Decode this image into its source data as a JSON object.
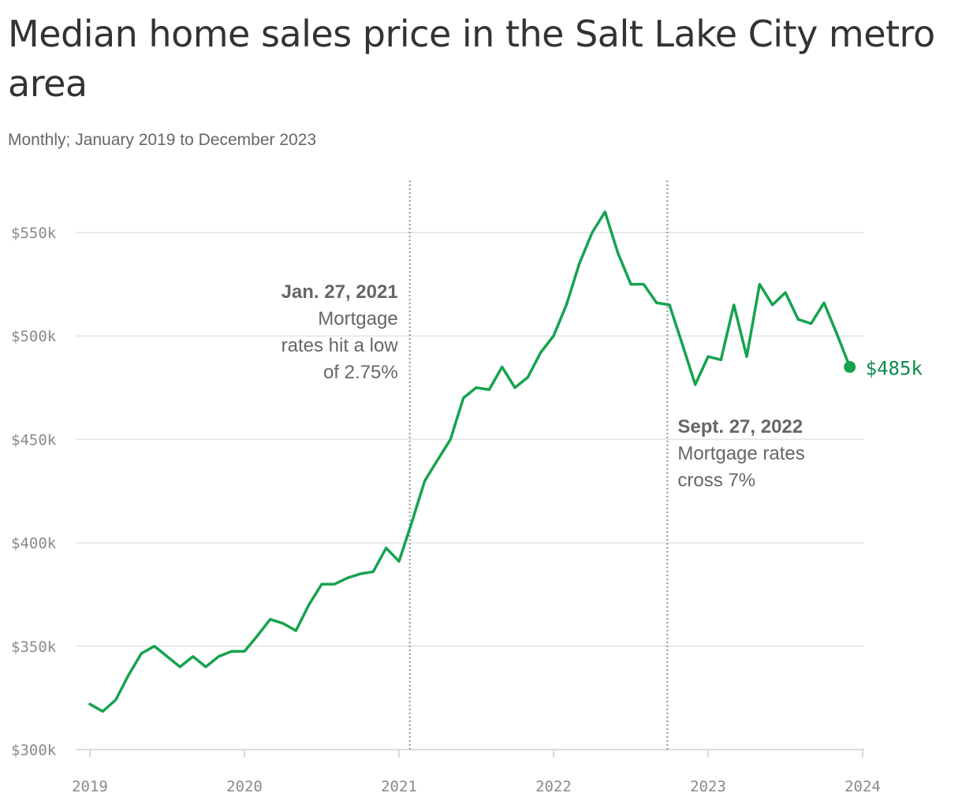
{
  "title": "Median home sales price in the Salt Lake City metro area",
  "subtitle": "Monthly; January 2019 to December 2023",
  "chart_data": {
    "type": "line",
    "title": "Median home sales price in the Salt Lake City metro area",
    "subtitle": "Monthly; January 2019 to December 2023",
    "xlabel": "",
    "ylabel": "",
    "x_range": [
      "2019-01",
      "2024-01"
    ],
    "ylim": [
      300000,
      560000
    ],
    "y_ticks": [
      300000,
      350000,
      400000,
      450000,
      500000,
      550000
    ],
    "y_tick_labels": [
      "$300k",
      "$350k",
      "$400k",
      "$450k",
      "$500k",
      "$550k"
    ],
    "x_ticks": [
      "2019-01",
      "2020-01",
      "2021-01",
      "2022-01",
      "2023-01",
      "2024-01"
    ],
    "x_tick_labels": [
      "2019",
      "2020",
      "2021",
      "2022",
      "2023",
      "2024"
    ],
    "grid": "horizontal",
    "line_color": "#16a34f",
    "series": [
      {
        "x": [
          "2019-01",
          "2019-02",
          "2019-03",
          "2019-04",
          "2019-05",
          "2019-06",
          "2019-07",
          "2019-08",
          "2019-09",
          "2019-10",
          "2019-11",
          "2019-12",
          "2020-01",
          "2020-02",
          "2020-03",
          "2020-04",
          "2020-05",
          "2020-06",
          "2020-07",
          "2020-08",
          "2020-09",
          "2020-10",
          "2020-11",
          "2020-12",
          "2021-01",
          "2021-02",
          "2021-03",
          "2021-04",
          "2021-05",
          "2021-06",
          "2021-07",
          "2021-08",
          "2021-09",
          "2021-10",
          "2021-11",
          "2021-12",
          "2022-01",
          "2022-02",
          "2022-03",
          "2022-04",
          "2022-05",
          "2022-06",
          "2022-07",
          "2022-08",
          "2022-09",
          "2022-10",
          "2022-11",
          "2022-12",
          "2023-01",
          "2023-02",
          "2023-03",
          "2023-04",
          "2023-05",
          "2023-06",
          "2023-07",
          "2023-08",
          "2023-09",
          "2023-10",
          "2023-11",
          "2023-12"
        ],
        "values": [
          322000,
          318500,
          324000,
          336000,
          346500,
          350000,
          345000,
          340000,
          345000,
          340000,
          345000,
          347500,
          347500,
          355000,
          363000,
          361000,
          357500,
          370000,
          380000,
          380000,
          383000,
          385000,
          386000,
          397500,
          391000,
          410000,
          430000,
          440000,
          450000,
          470000,
          475000,
          474000,
          485000,
          475000,
          480000,
          492000,
          500000,
          515000,
          535000,
          550000,
          560000,
          540000,
          525000,
          525000,
          516000,
          515000,
          496000,
          476500,
          490000,
          488500,
          515000,
          490000,
          525000,
          515000,
          521000,
          508000,
          506000,
          516000,
          501000,
          485000
        ]
      }
    ],
    "end_label": "$485k",
    "annotations": [
      {
        "x": "2021-01-27",
        "title": "Jan. 27, 2021",
        "lines": [
          "Mortgage",
          "rates hit a low",
          "of 2.75%"
        ]
      },
      {
        "x": "2022-09-27",
        "title": "Sept. 27, 2022",
        "lines": [
          "Mortgage rates",
          "cross 7%"
        ]
      }
    ]
  }
}
